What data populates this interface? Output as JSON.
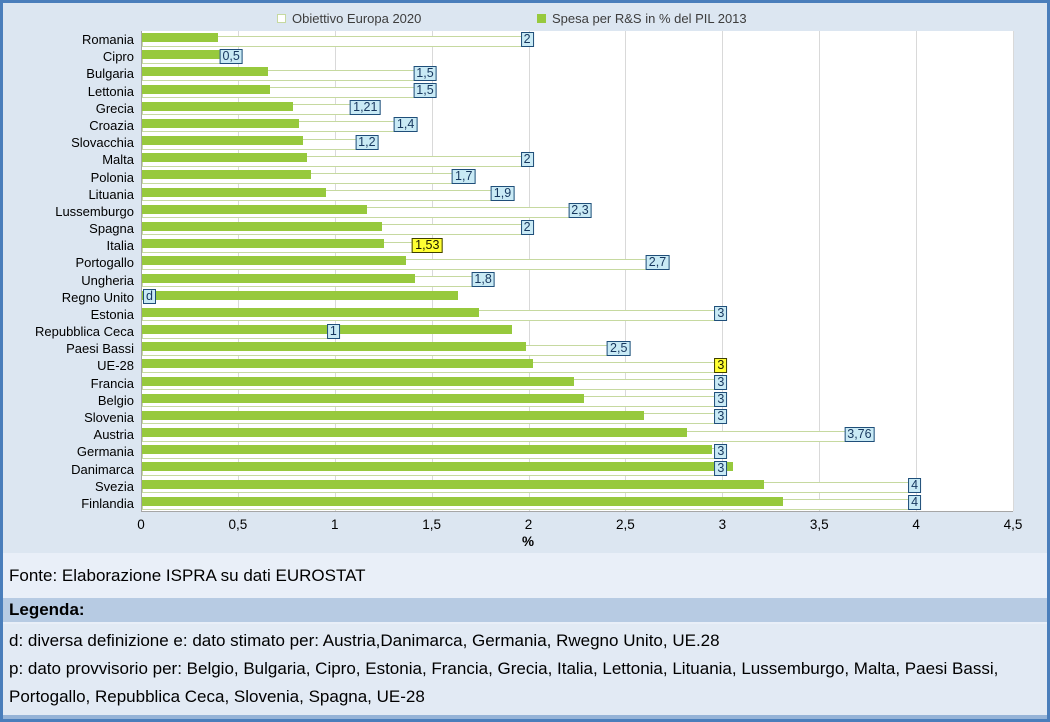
{
  "colors": {
    "bar_green": "#97C93D",
    "outline_bar_border": "#C6D9A0",
    "label_box_cyan": "#C9EAF5",
    "label_box_border": "#1F4E79",
    "label_box_yellow": "#FFFF33",
    "gridline": "#D9D9D9",
    "axis": "#A6A6A6",
    "chart_bg": "#DCE6F1",
    "fonte_bg": "#E9EFF8",
    "legenda_header_bg": "#B7CBE3",
    "legenda_body_bg": "#E2EAF4",
    "bottom_strip": "#95B3D7",
    "page_border": "#4A7EBB"
  },
  "chart_data": {
    "type": "bar",
    "orientation": "horizontal",
    "title": "",
    "xlabel": "%",
    "ylabel": "",
    "xlim": [
      0,
      4.5
    ],
    "grid": true,
    "legend_position": "top",
    "x_ticks": [
      "0",
      "0,5",
      "1",
      "1,5",
      "2",
      "2,5",
      "3",
      "3,5",
      "4",
      "4,5"
    ],
    "x_tick_values": [
      0,
      0.5,
      1,
      1.5,
      2,
      2.5,
      3,
      3.5,
      4,
      4.5
    ],
    "legend": [
      {
        "label": "Obiettivo Europa 2020",
        "style": "outline"
      },
      {
        "label": "Spesa per R&S in % del PIL 2013",
        "style": "solid"
      }
    ],
    "series": [
      {
        "name": "Obiettivo Europa 2020",
        "values": [
          2,
          0.5,
          1.5,
          1.5,
          1.21,
          1.4,
          1.2,
          2,
          1.7,
          1.9,
          2.3,
          2,
          1.53,
          2.7,
          1.8,
          null,
          3,
          1,
          2.5,
          3,
          3,
          3,
          3,
          3.76,
          3,
          3,
          4,
          4
        ]
      },
      {
        "name": "Spesa per R&S in % del PIL 2013",
        "values": [
          0.39,
          0.48,
          0.65,
          0.66,
          0.78,
          0.81,
          0.83,
          0.85,
          0.87,
          0.95,
          1.16,
          1.24,
          1.25,
          1.36,
          1.41,
          1.63,
          1.74,
          1.91,
          1.98,
          2.02,
          2.23,
          2.28,
          2.59,
          2.81,
          2.94,
          3.05,
          3.21,
          3.31
        ]
      }
    ],
    "rows": [
      {
        "country": "Romania",
        "target": 2,
        "target_label": "2",
        "value": 0.39,
        "highlight": false
      },
      {
        "country": "Cipro",
        "target": 0.5,
        "target_label": "0,5",
        "value": 0.48,
        "highlight": false
      },
      {
        "country": "Bulgaria",
        "target": 1.5,
        "target_label": "1,5",
        "value": 0.65,
        "highlight": false
      },
      {
        "country": "Lettonia",
        "target": 1.5,
        "target_label": "1,5",
        "value": 0.66,
        "highlight": false
      },
      {
        "country": "Grecia",
        "target": 1.21,
        "target_label": "1,21",
        "value": 0.78,
        "highlight": false
      },
      {
        "country": "Croazia",
        "target": 1.4,
        "target_label": "1,4",
        "value": 0.81,
        "highlight": false
      },
      {
        "country": "Slovacchia",
        "target": 1.2,
        "target_label": "1,2",
        "value": 0.83,
        "highlight": false
      },
      {
        "country": "Malta",
        "target": 2,
        "target_label": "2",
        "value": 0.85,
        "highlight": false
      },
      {
        "country": "Polonia",
        "target": 1.7,
        "target_label": "1,7",
        "value": 0.87,
        "highlight": false
      },
      {
        "country": "Lituania",
        "target": 1.9,
        "target_label": "1,9",
        "value": 0.95,
        "highlight": false
      },
      {
        "country": "Lussemburgo",
        "target": 2.3,
        "target_label": "2,3",
        "value": 1.16,
        "highlight": false
      },
      {
        "country": "Spagna",
        "target": 2,
        "target_label": "2",
        "value": 1.24,
        "highlight": false
      },
      {
        "country": "Italia",
        "target": 1.53,
        "target_label": "1,53",
        "value": 1.25,
        "highlight": true
      },
      {
        "country": "Portogallo",
        "target": 2.7,
        "target_label": "2,7",
        "value": 1.36,
        "highlight": false
      },
      {
        "country": "Ungheria",
        "target": 1.8,
        "target_label": "1,8",
        "value": 1.41,
        "highlight": false
      },
      {
        "country": "Regno Unito",
        "target": null,
        "target_label": "d",
        "value": 1.63,
        "highlight": false
      },
      {
        "country": "Estonia",
        "target": 3,
        "target_label": "3",
        "value": 1.74,
        "highlight": false
      },
      {
        "country": "Repubblica Ceca",
        "target": 1,
        "target_label": "1",
        "value": 1.91,
        "highlight": false
      },
      {
        "country": "Paesi Bassi",
        "target": 2.5,
        "target_label": "2,5",
        "value": 1.98,
        "highlight": false
      },
      {
        "country": "UE-28",
        "target": 3,
        "target_label": "3",
        "value": 2.02,
        "highlight": true
      },
      {
        "country": "Francia",
        "target": 3,
        "target_label": "3",
        "value": 2.23,
        "highlight": false
      },
      {
        "country": "Belgio",
        "target": 3,
        "target_label": "3",
        "value": 2.28,
        "highlight": false
      },
      {
        "country": "Slovenia",
        "target": 3,
        "target_label": "3",
        "value": 2.59,
        "highlight": false
      },
      {
        "country": "Austria",
        "target": 3.76,
        "target_label": "3,76",
        "value": 2.81,
        "highlight": false
      },
      {
        "country": "Germania",
        "target": 3,
        "target_label": "3",
        "value": 2.94,
        "highlight": false
      },
      {
        "country": "Danimarca",
        "target": 3,
        "target_label": "3",
        "value": 3.05,
        "highlight": false
      },
      {
        "country": "Svezia",
        "target": 4,
        "target_label": "4",
        "value": 3.21,
        "highlight": false
      },
      {
        "country": "Finlandia",
        "target": 4,
        "target_label": "4",
        "value": 3.31,
        "highlight": false
      }
    ]
  },
  "fonte": {
    "text": "Fonte: Elaborazione ISPRA su dati EUROSTAT"
  },
  "legenda": {
    "header": "Legenda:",
    "line1": "d: diversa definizione e: dato stimato per: Austria,Danimarca, Germania, Rwegno Unito, UE.28",
    "line2": "p: dato provvisorio per: Belgio, Bulgaria, Cipro, Estonia, Francia, Grecia, Italia, Lettonia, Lituania, Lussemburgo, Malta, Paesi Bassi, Portogallo, Repubblica Ceca, Slovenia, Spagna, UE-28"
  }
}
